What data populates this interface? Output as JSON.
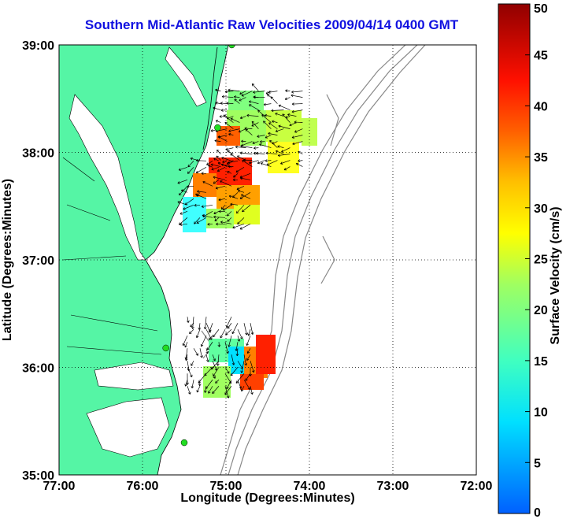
{
  "title": "Southern Mid-Atlantic Raw Velocities 2009/04/14 0400 GMT",
  "xlabel": "Longitude (Degrees:Minutes)",
  "ylabel": "Latitude (Degrees:Minutes)",
  "colorbar": {
    "label": "Surface Velocity (cm/s)",
    "ticks": [
      "0",
      "5",
      "10",
      "15",
      "20",
      "25",
      "30",
      "35",
      "40",
      "45",
      "50"
    ],
    "range": [
      0,
      50
    ]
  },
  "map": {
    "x_ticks": [
      "77:00",
      "76:00",
      "75:00",
      "74:00",
      "73:00",
      "72:00"
    ],
    "y_ticks": [
      "39:00",
      "38:00",
      "37:00",
      "36:00",
      "35:00"
    ],
    "x_range": [
      -77,
      -72
    ],
    "y_range": [
      35,
      39
    ],
    "land_color": "#55f5a5",
    "bathymetry_color": "#888888",
    "grid": "dotted",
    "station_color": "#22dd22"
  },
  "chart_data": {
    "type": "heatmap",
    "title": "Southern Mid-Atlantic Raw Velocities 2009/04/14 0400 GMT",
    "xlabel": "Longitude (Degrees:Minutes)",
    "ylabel": "Latitude (Degrees:Minutes)",
    "xlim": [
      -77,
      -72
    ],
    "ylim": [
      35,
      39
    ],
    "zlim": [
      0,
      50
    ],
    "stations": [
      {
        "lon": -74.93,
        "lat": 39.0
      },
      {
        "lon": -75.1,
        "lat": 38.23
      },
      {
        "lon": -75.72,
        "lat": 36.18
      },
      {
        "lon": -75.5,
        "lat": 35.3
      }
    ],
    "velocity_regions": [
      {
        "lon_range": [
          -75.1,
          -74.0
        ],
        "lat_range": [
          37.8,
          38.6
        ],
        "speed_range": [
          20,
          30
        ]
      },
      {
        "lon_range": [
          -75.5,
          -74.6
        ],
        "lat_range": [
          37.25,
          37.95
        ],
        "speed_range": [
          10,
          45
        ]
      },
      {
        "lon_range": [
          -75.5,
          -74.6
        ],
        "lat_range": [
          35.75,
          36.5
        ],
        "speed_range": [
          8,
          45
        ]
      }
    ]
  }
}
